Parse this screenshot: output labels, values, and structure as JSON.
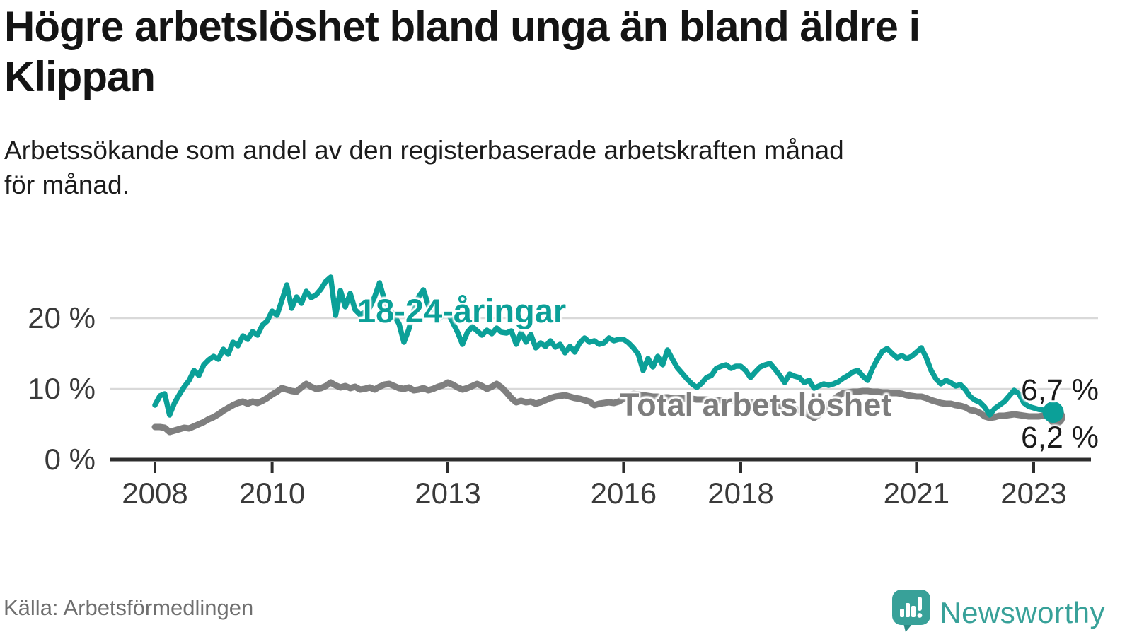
{
  "header": {
    "title_lines": [
      "Högre arbetslöshet bland unga än bland äldre i",
      "Klippan"
    ],
    "subtitle_lines": [
      "Arbetssökande som andel av den registerbaserade arbetskraften månad",
      "för månad."
    ]
  },
  "chart_data": {
    "type": "line",
    "title": "Högre arbetslöshet bland unga än bland äldre i Klippan",
    "subtitle": "Arbetssökande som andel av den registerbaserade arbetskraften månad för månad.",
    "x_unit": "month",
    "x_start": "2008-01",
    "x_end": "2023-05",
    "x_ticks": [
      2008,
      2010,
      2013,
      2016,
      2018,
      2021,
      2023
    ],
    "y_ticks": [
      {
        "label": "20 %",
        "value": 20
      },
      {
        "label": "10 %",
        "value": 10
      },
      {
        "label": "0 %",
        "value": 0
      }
    ],
    "ylim": [
      0,
      27
    ],
    "grid": "horizontal",
    "series": [
      {
        "name": "18-24-åringar",
        "color": "#0ba098",
        "end_label": "6,7 %",
        "end_value": 6.7,
        "values": [
          7.7,
          9.0,
          9.3,
          6.3,
          8.0,
          9.2,
          10.3,
          11.2,
          12.6,
          11.9,
          13.4,
          14.1,
          14.6,
          14.2,
          15.6,
          14.9,
          16.6,
          16.1,
          17.5,
          17.0,
          18.1,
          17.6,
          19.0,
          19.6,
          21.0,
          20.4,
          22.5,
          24.7,
          21.4,
          23.0,
          22.1,
          23.8,
          22.9,
          23.3,
          24.1,
          25.2,
          25.8,
          20.4,
          23.9,
          21.6,
          23.5,
          21.2,
          20.5,
          20.8,
          21.5,
          23.0,
          25.0,
          22.6,
          21.3,
          20.4,
          19.2,
          16.6,
          18.4,
          21.0,
          23.0,
          24.0,
          21.8,
          20.6,
          19.8,
          20.4,
          20.8,
          19.4,
          18.0,
          16.3,
          18.0,
          18.8,
          18.2,
          17.6,
          18.3,
          17.8,
          18.6,
          18.0,
          17.9,
          18.2,
          16.3,
          18.0,
          16.6,
          17.7,
          15.8,
          16.5,
          16.0,
          16.8,
          15.9,
          16.3,
          15.1,
          16.0,
          15.2,
          16.5,
          17.2,
          16.6,
          16.8,
          16.3,
          16.5,
          17.2,
          16.8,
          17.0,
          17.0,
          16.5,
          15.8,
          14.9,
          12.6,
          14.3,
          13.1,
          14.6,
          13.4,
          15.5,
          14.2,
          13.0,
          12.2,
          11.4,
          10.7,
          10.2,
          10.8,
          11.6,
          11.9,
          12.9,
          13.2,
          13.4,
          12.9,
          13.2,
          13.2,
          12.6,
          11.6,
          12.4,
          13.1,
          13.4,
          13.6,
          12.8,
          11.9,
          10.9,
          12.1,
          11.8,
          11.6,
          10.9,
          11.2,
          10.1,
          10.4,
          10.7,
          10.5,
          10.7,
          11.0,
          11.5,
          11.9,
          12.4,
          12.6,
          11.8,
          11.2,
          12.9,
          14.2,
          15.3,
          15.7,
          15.0,
          14.4,
          14.7,
          14.3,
          14.6,
          15.2,
          15.8,
          14.4,
          12.6,
          11.4,
          10.7,
          11.2,
          10.9,
          10.4,
          10.6,
          9.9,
          8.9,
          8.4,
          8.1,
          7.4,
          6.3,
          7.2,
          7.7,
          8.2,
          9.0,
          9.8,
          9.3,
          8.0,
          7.5,
          7.3,
          7.1,
          7.0,
          6.8,
          6.7
        ]
      },
      {
        "name": "Total arbetslöshet",
        "color": "#7f7f7f",
        "end_label": "6,2 %",
        "end_value": 6.2,
        "values": [
          4.6,
          4.6,
          4.5,
          3.9,
          4.1,
          4.3,
          4.5,
          4.4,
          4.7,
          5.0,
          5.3,
          5.7,
          6.0,
          6.4,
          6.9,
          7.3,
          7.7,
          8.0,
          8.2,
          7.9,
          8.2,
          8.0,
          8.3,
          8.7,
          9.2,
          9.6,
          10.1,
          9.9,
          9.7,
          9.6,
          10.2,
          10.7,
          10.3,
          10.0,
          10.1,
          10.4,
          10.9,
          10.5,
          10.2,
          10.4,
          10.1,
          10.3,
          9.9,
          10.0,
          10.2,
          9.9,
          10.3,
          10.6,
          10.7,
          10.4,
          10.1,
          10.0,
          10.2,
          9.8,
          9.9,
          10.1,
          9.8,
          10.0,
          10.3,
          10.5,
          10.9,
          10.6,
          10.2,
          9.9,
          10.1,
          10.4,
          10.7,
          10.4,
          10.0,
          10.3,
          10.7,
          10.2,
          9.5,
          8.7,
          8.1,
          8.3,
          8.1,
          8.2,
          7.9,
          8.1,
          8.4,
          8.7,
          8.9,
          9.0,
          9.1,
          8.9,
          8.7,
          8.6,
          8.4,
          8.2,
          7.7,
          7.9,
          8.0,
          8.1,
          8.0,
          8.2,
          8.6,
          9.0,
          9.3,
          9.2,
          9.1,
          9.0,
          8.9,
          8.9,
          8.8,
          8.8,
          8.7,
          8.7,
          8.7,
          8.6,
          8.6,
          8.5,
          8.5,
          8.5,
          8.4,
          8.4,
          8.4,
          8.3,
          8.3,
          8.3,
          8.3,
          8.2,
          8.1,
          8.1,
          8.0,
          8.0,
          7.9,
          7.8,
          7.6,
          7.4,
          7.3,
          7.2,
          7.0,
          6.7,
          6.3,
          5.9,
          6.3,
          7.0,
          7.8,
          8.5,
          9.0,
          9.4,
          9.5,
          9.6,
          9.6,
          9.7,
          9.7,
          9.6,
          9.6,
          9.5,
          9.5,
          9.4,
          9.4,
          9.3,
          9.1,
          9.0,
          8.9,
          8.9,
          8.7,
          8.4,
          8.2,
          8.0,
          7.9,
          7.9,
          7.7,
          7.6,
          7.4,
          7.0,
          6.9,
          6.6,
          6.1,
          5.9,
          6.0,
          6.2,
          6.2,
          6.3,
          6.4,
          6.3,
          6.2,
          6.1,
          6.1,
          6.1,
          6.2,
          6.2,
          6.2
        ]
      }
    ]
  },
  "colors": {
    "accent_teal": "#0ba098",
    "line_gray": "#7f7f7f",
    "grid": "#d9d9d9",
    "axis": "#2d2d2d",
    "tick_label": "#3a3a3a",
    "brand_teal": "#38a199"
  },
  "footer": {
    "source": "Källa: Arbetsförmedlingen",
    "brand": "Newsworthy"
  }
}
